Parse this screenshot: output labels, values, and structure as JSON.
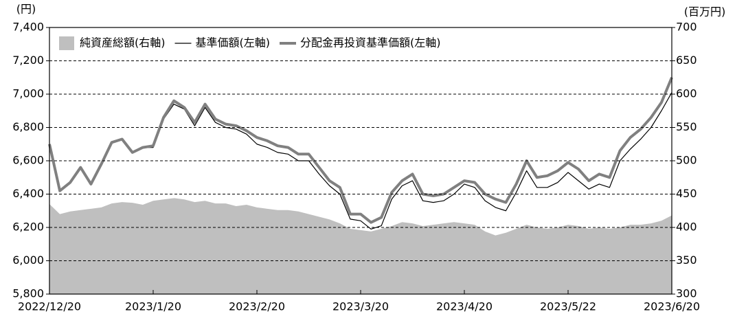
{
  "chart_data": {
    "type": "line",
    "y_unit": "(円)",
    "y2_unit": "(百万円)",
    "categories": [
      "2022/12/20",
      null,
      null,
      null,
      null,
      null,
      null,
      null,
      null,
      null,
      "2023/1/20",
      null,
      null,
      null,
      null,
      null,
      null,
      null,
      null,
      null,
      "2023/2/20",
      null,
      null,
      null,
      null,
      null,
      null,
      null,
      null,
      null,
      "2023/3/20",
      null,
      null,
      null,
      null,
      null,
      null,
      null,
      null,
      null,
      "2023/4/20",
      null,
      null,
      null,
      null,
      null,
      null,
      null,
      null,
      null,
      "2023/5/22",
      null,
      null,
      null,
      null,
      null,
      null,
      null,
      null,
      null,
      "2023/6/20"
    ],
    "ylim": [
      5800,
      7400
    ],
    "yticks": [
      {
        "value": 5800,
        "label": "5,800"
      },
      {
        "value": 6000,
        "label": "6,000"
      },
      {
        "value": 6200,
        "label": "6,200"
      },
      {
        "value": 6400,
        "label": "6,400"
      },
      {
        "value": 6600,
        "label": "6,600"
      },
      {
        "value": 6800,
        "label": "6,800"
      },
      {
        "value": 7000,
        "label": "7,000"
      },
      {
        "value": 7200,
        "label": "7,200"
      },
      {
        "value": 7400,
        "label": "7,400"
      }
    ],
    "y2lim": [
      300,
      700
    ],
    "y2ticks": [
      300,
      350,
      400,
      450,
      500,
      550,
      600,
      650,
      700
    ],
    "grid": true,
    "legend": "top-left",
    "series": [
      {
        "name": "純資産総額(右軸)",
        "type": "area",
        "axis": "y2",
        "color": "#bfbfbf",
        "values": [
          435,
          420,
          424,
          426,
          428,
          430,
          436,
          438,
          437,
          434,
          440,
          442,
          444,
          442,
          438,
          440,
          436,
          436,
          432,
          434,
          430,
          428,
          426,
          426,
          424,
          420,
          416,
          412,
          406,
          398,
          396,
          394,
          398,
          402,
          408,
          406,
          402,
          404,
          406,
          408,
          406,
          404,
          394,
          388,
          392,
          398,
          404,
          400,
          398,
          400,
          404,
          402,
          398,
          400,
          398,
          400,
          404,
          404,
          406,
          410,
          418
        ]
      },
      {
        "name": "基準価額(左軸)",
        "type": "line",
        "color": "#000000",
        "width": 1.2,
        "values": [
          6700,
          6420,
          6470,
          6560,
          6460,
          6580,
          6710,
          6730,
          6650,
          6680,
          6680,
          6850,
          6940,
          6910,
          6810,
          6920,
          6830,
          6800,
          6790,
          6760,
          6700,
          6680,
          6650,
          6640,
          6600,
          6600,
          6520,
          6450,
          6400,
          6250,
          6240,
          6190,
          6210,
          6370,
          6450,
          6480,
          6360,
          6350,
          6360,
          6400,
          6460,
          6440,
          6360,
          6320,
          6300,
          6410,
          6540,
          6440,
          6440,
          6470,
          6530,
          6480,
          6430,
          6460,
          6440,
          6600,
          6670,
          6730,
          6800,
          6900,
          7010
        ]
      },
      {
        "name": "分配金再投資基準価額(左軸)",
        "type": "line",
        "color": "#808080",
        "width": 4,
        "values": [
          6700,
          6420,
          6470,
          6560,
          6460,
          6580,
          6710,
          6730,
          6650,
          6680,
          6690,
          6860,
          6960,
          6920,
          6830,
          6940,
          6850,
          6820,
          6810,
          6780,
          6740,
          6720,
          6690,
          6680,
          6640,
          6640,
          6560,
          6480,
          6440,
          6280,
          6280,
          6230,
          6260,
          6410,
          6480,
          6520,
          6400,
          6390,
          6400,
          6440,
          6480,
          6470,
          6400,
          6370,
          6350,
          6460,
          6600,
          6500,
          6510,
          6540,
          6590,
          6550,
          6480,
          6520,
          6500,
          6660,
          6740,
          6790,
          6860,
          6950,
          7100
        ]
      }
    ]
  }
}
